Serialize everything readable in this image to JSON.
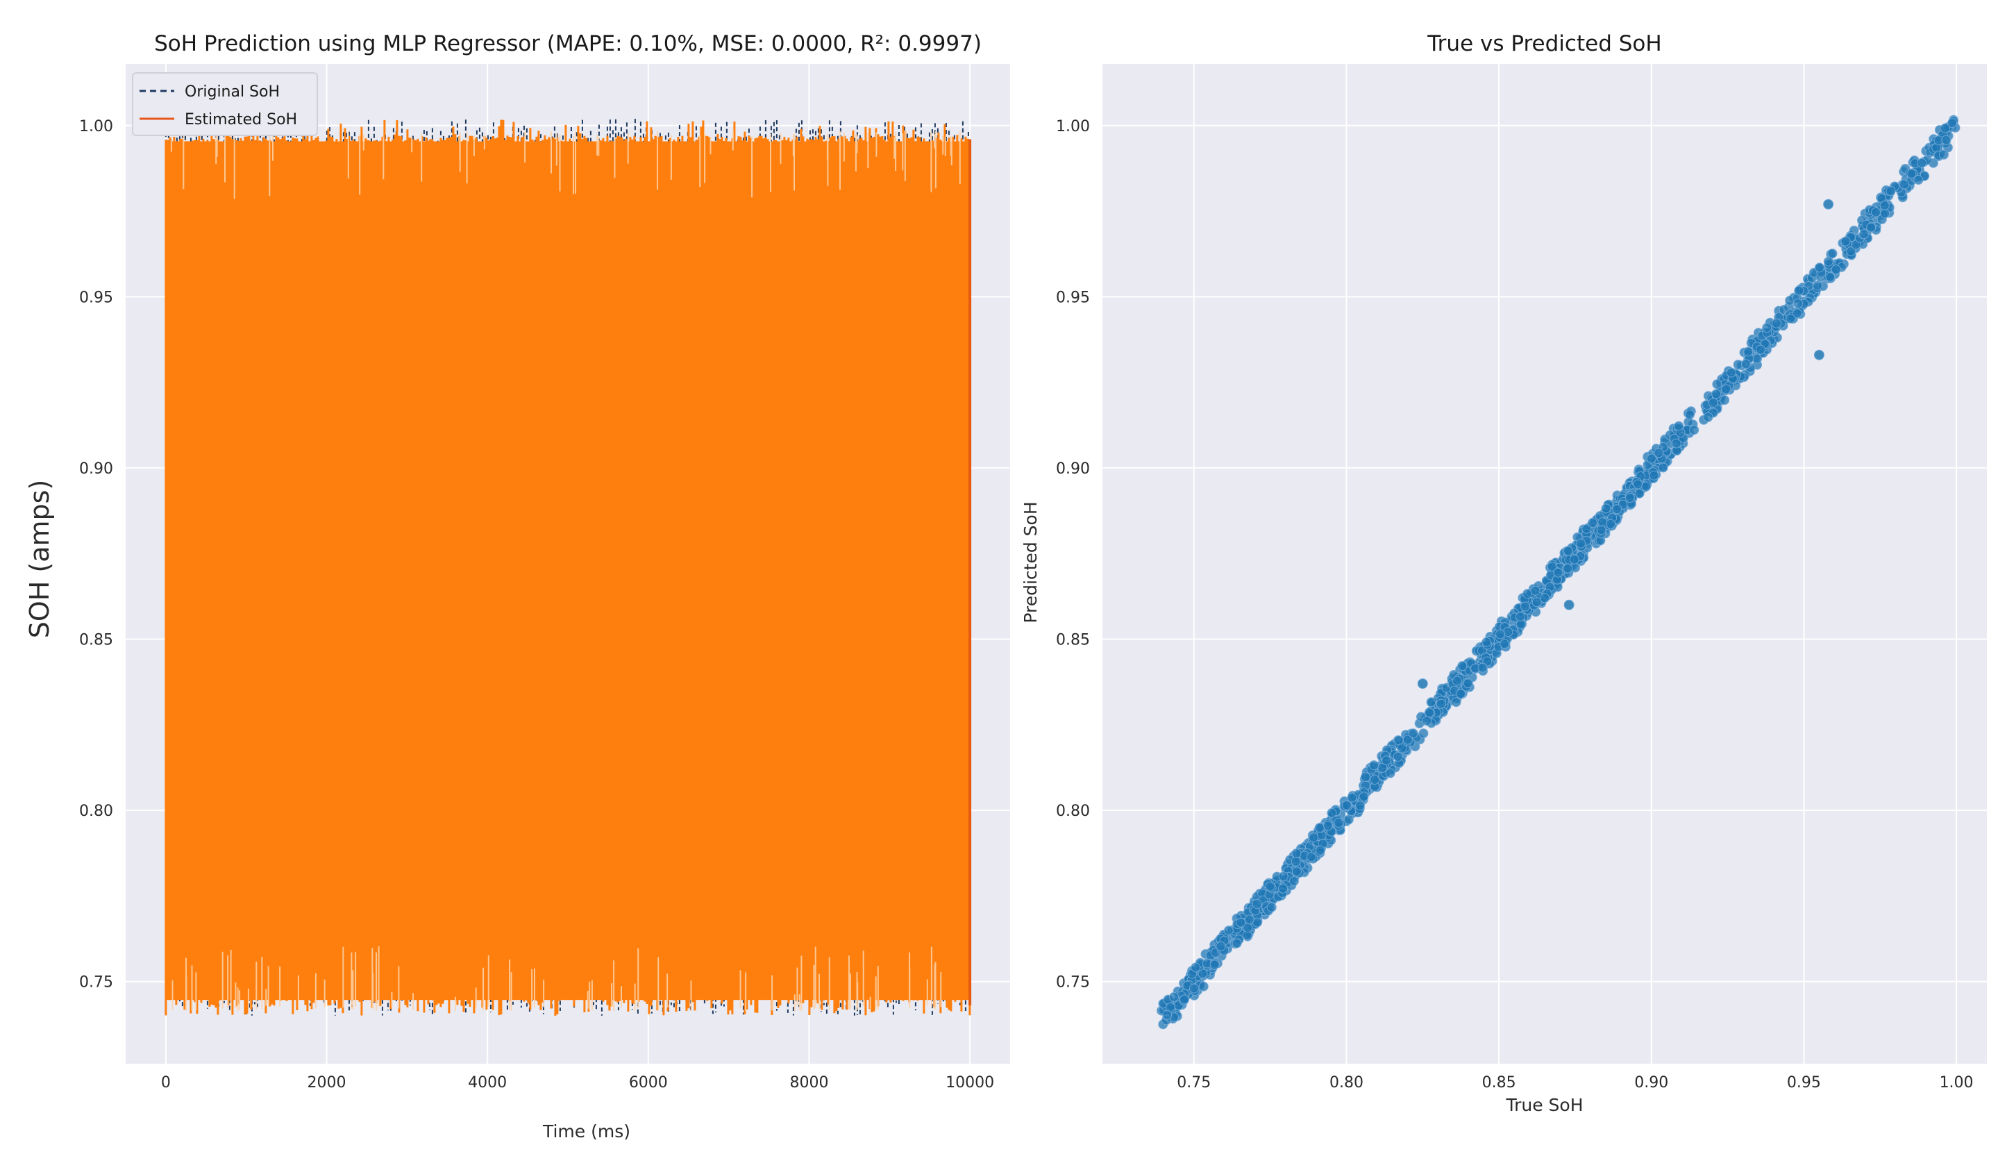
{
  "chart_data": [
    {
      "type": "line",
      "title": "SoH Prediction using MLP Regressor (MAPE: 0.10%, MSE: 0.0000, R²: 0.9997)",
      "xlabel": "Time (ms)",
      "ylabel": "SOH (amps)",
      "xlim": [
        -500,
        10500
      ],
      "ylim": [
        0.726,
        1.018
      ],
      "xticks": [
        "0",
        "2000",
        "4000",
        "6000",
        "8000",
        "10000"
      ],
      "yticks": [
        "0.75",
        "0.80",
        "0.85",
        "0.90",
        "0.95",
        "1.00"
      ],
      "grid": true,
      "legend_position": "top-left",
      "series": [
        {
          "name": "Original SoH",
          "style": "dashed",
          "color": "#1f3a5f",
          "x": [
            0,
            10000
          ],
          "min": 0.74,
          "max": 1.0
        },
        {
          "name": "Estimated SoH",
          "style": "solid",
          "color": "#ff7f0e",
          "x": [
            0,
            10000
          ],
          "min": 0.74,
          "max": 1.0
        }
      ]
    },
    {
      "type": "scatter",
      "title": "True vs Predicted SoH",
      "xlabel": "True SoH",
      "ylabel": "Predicted SoH",
      "xlim": [
        0.72,
        1.01
      ],
      "ylim": [
        0.726,
        1.018
      ],
      "xticks": [
        "0.75",
        "0.80",
        "0.85",
        "0.90",
        "0.95",
        "1.00"
      ],
      "yticks": [
        "0.75",
        "0.80",
        "0.85",
        "0.90",
        "0.95",
        "1.00"
      ],
      "grid": true,
      "color": "#1f77b4",
      "points_range": {
        "x": [
          0.74,
          1.0
        ],
        "y": [
          0.74,
          1.0
        ]
      },
      "outliers": [
        {
          "x": 0.958,
          "y": 0.977
        },
        {
          "x": 0.955,
          "y": 0.933
        },
        {
          "x": 0.873,
          "y": 0.86
        },
        {
          "x": 0.825,
          "y": 0.837
        }
      ]
    }
  ]
}
